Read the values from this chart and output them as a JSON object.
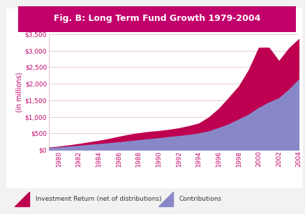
{
  "title": "Fig. B: Long Term Fund Growth 1979-2004",
  "title_bg_color": "#c2006b",
  "title_text_color": "#ffffff",
  "ylabel": "(in millions)",
  "years": [
    1979,
    1980,
    1981,
    1982,
    1983,
    1984,
    1985,
    1986,
    1987,
    1988,
    1989,
    1990,
    1991,
    1992,
    1993,
    1994,
    1995,
    1996,
    1997,
    1998,
    1999,
    2000,
    2001,
    2002,
    2003,
    2004
  ],
  "contributions": [
    50,
    70,
    95,
    120,
    148,
    172,
    198,
    228,
    258,
    290,
    320,
    352,
    385,
    415,
    450,
    495,
    560,
    660,
    775,
    920,
    1070,
    1270,
    1430,
    1560,
    1820,
    2130
  ],
  "investment_return": [
    15,
    25,
    38,
    55,
    75,
    100,
    130,
    165,
    195,
    210,
    220,
    215,
    220,
    235,
    265,
    300,
    420,
    580,
    800,
    1000,
    1350,
    1820,
    1660,
    1120,
    1250,
    1220
  ],
  "contributions_color": "#8888c8",
  "investment_color": "#be0050",
  "ylim": [
    0,
    3500
  ],
  "yticks": [
    0,
    500,
    1000,
    1500,
    2000,
    2500,
    3000,
    3500
  ],
  "grid_color": "#e8c8d8",
  "chart_bg": "#ffffff",
  "outer_bg": "#f2f2f2",
  "xtick_labels": [
    "1980",
    "1982",
    "1984",
    "1986",
    "1988",
    "1990",
    "1992",
    "1994",
    "1996",
    "1998",
    "2000",
    "2002",
    "2004"
  ],
  "xtick_years": [
    1980,
    1982,
    1984,
    1986,
    1988,
    1990,
    1992,
    1994,
    1996,
    1998,
    2000,
    2002,
    2004
  ],
  "legend_invest_label": "Investment Return (net of distributions)",
  "legend_contrib_label": "Contributions",
  "tick_color": "#c2006b",
  "ylabel_color": "#c2006b"
}
